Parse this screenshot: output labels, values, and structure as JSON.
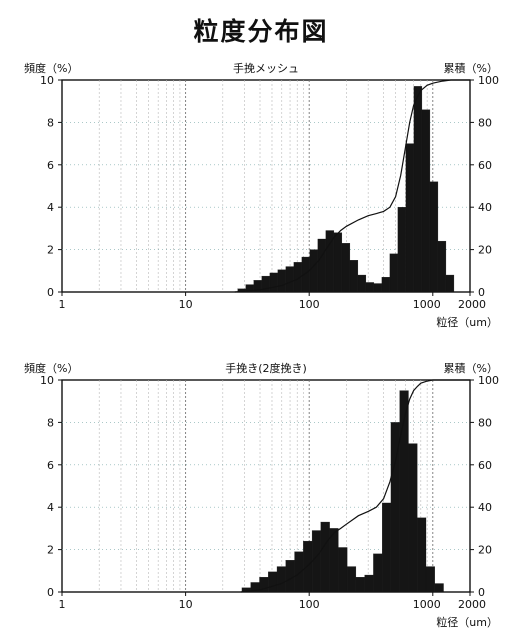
{
  "page": {
    "title": "粒度分布図"
  },
  "chart_data": [
    {
      "type": "bar",
      "title": "手挽メッシュ",
      "ylabel": "頻度（%）",
      "y2label": "累積（%）",
      "xlabel": "粒径（um）",
      "x_scale": "log",
      "xlim": [
        1,
        2000
      ],
      "ylim": [
        0,
        10
      ],
      "y2lim": [
        0,
        100
      ],
      "x_ticks": [
        1,
        10,
        100,
        1000,
        2000
      ],
      "y_ticks": [
        0,
        2,
        4,
        6,
        8,
        10
      ],
      "y2_ticks": [
        0,
        20,
        40,
        60,
        80,
        100
      ],
      "grid": true,
      "series": [
        {
          "type": "bar",
          "x": [
            28.5,
            33.1,
            38.4,
            44.6,
            51.8,
            60.1,
            69.8,
            81.0,
            94.0,
            109.1,
            126.6,
            147.0,
            170.6,
            198.1,
            229.9,
            266.9,
            309.8,
            359.6,
            417.4,
            484.5,
            562.4,
            652.9,
            757.9,
            879.7,
            1021.2,
            1185.4,
            1376.0
          ],
          "values": [
            0.15,
            0.35,
            0.55,
            0.75,
            0.9,
            1.05,
            1.2,
            1.4,
            1.65,
            2.0,
            2.5,
            2.9,
            2.8,
            2.3,
            1.5,
            0.8,
            0.45,
            0.4,
            0.7,
            1.8,
            4.0,
            7.0,
            9.7,
            8.6,
            5.2,
            2.4,
            0.8
          ]
        },
        {
          "type": "line",
          "axis": "y2",
          "x": [
            25,
            40,
            60,
            80,
            100,
            120,
            140,
            160,
            180,
            200,
            250,
            300,
            350,
            400,
            450,
            500,
            550,
            600,
            650,
            700,
            750,
            800,
            900,
            1000,
            1100,
            1200,
            1400,
            1700,
            2000
          ],
          "values": [
            0,
            1,
            3,
            6,
            10,
            15,
            21,
            26,
            29,
            31,
            34,
            36,
            37,
            38,
            40,
            45,
            55,
            68,
            80,
            88,
            92,
            95,
            97.5,
            98.5,
            99,
            99.5,
            100,
            100,
            100
          ]
        }
      ]
    },
    {
      "type": "bar",
      "title": "手挽き(2度挽き)",
      "ylabel": "頻度（%）",
      "y2label": "累積（%）",
      "xlabel": "粒径（um）",
      "x_scale": "log",
      "xlim": [
        1,
        2000
      ],
      "ylim": [
        0,
        10
      ],
      "y2lim": [
        0,
        100
      ],
      "x_ticks": [
        1,
        10,
        100,
        1000,
        2000
      ],
      "y_ticks": [
        0,
        2,
        4,
        6,
        8,
        10
      ],
      "y2_ticks": [
        0,
        20,
        40,
        60,
        80,
        100
      ],
      "grid": true,
      "series": [
        {
          "type": "bar",
          "x": [
            31.0,
            36.5,
            43.0,
            50.6,
            59.6,
            70.2,
            82.6,
            97.3,
            114.5,
            134.8,
            158.7,
            186.9,
            220.0,
            259.0,
            304.9,
            359.0,
            422.6,
            497.6,
            585.8,
            689.7,
            812.0,
            956.0,
            1125.6
          ],
          "values": [
            0.2,
            0.45,
            0.7,
            0.95,
            1.2,
            1.5,
            1.9,
            2.4,
            2.9,
            3.3,
            3.0,
            2.1,
            1.2,
            0.7,
            0.8,
            1.8,
            4.2,
            8.0,
            9.5,
            7.0,
            3.5,
            1.2,
            0.4
          ]
        },
        {
          "type": "line",
          "axis": "y2",
          "x": [
            28,
            40,
            60,
            80,
            100,
            120,
            140,
            160,
            180,
            200,
            250,
            300,
            350,
            400,
            450,
            500,
            550,
            600,
            650,
            700,
            750,
            800,
            900,
            1000,
            1200,
            1500,
            2000
          ],
          "values": [
            0,
            1,
            4,
            8,
            13,
            18,
            24,
            28,
            30,
            32,
            36,
            38,
            40,
            44,
            52,
            62,
            74,
            84,
            91,
            95,
            97,
            98.5,
            99.5,
            100,
            100,
            100,
            100
          ]
        }
      ]
    }
  ]
}
